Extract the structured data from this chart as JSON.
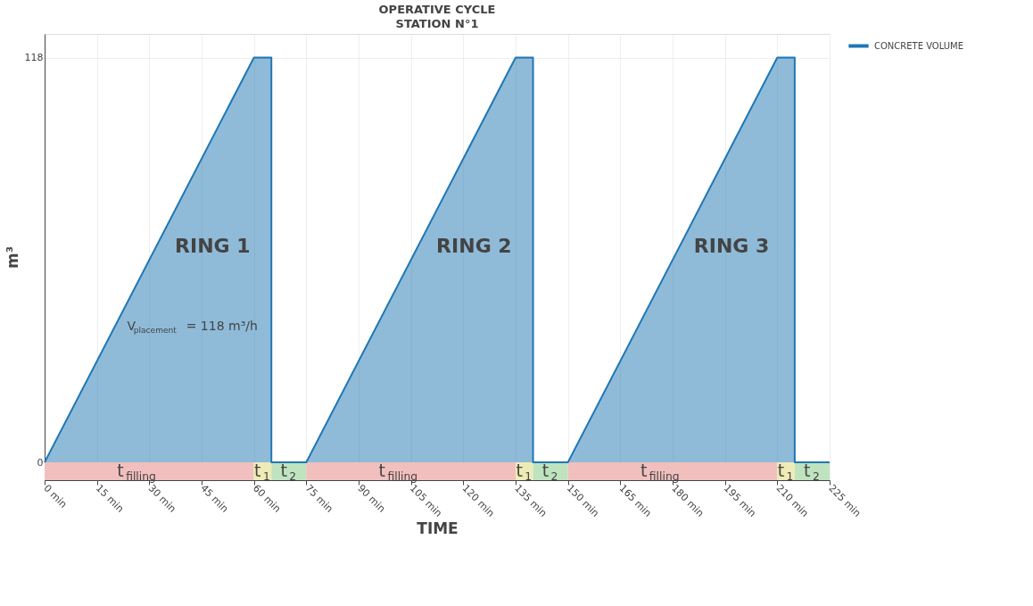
{
  "chart_data": {
    "type": "area",
    "title": "OPERATIVE CYCLE",
    "subtitle": "STATION N°1",
    "xlabel": "TIME",
    "ylabel": "m³",
    "x": [
      0,
      60,
      65,
      65,
      75,
      135,
      140,
      140,
      150,
      210,
      215,
      215,
      225
    ],
    "series": [
      {
        "name": "CONCRETE VOLUME",
        "color": "#1f77b4",
        "values": [
          0,
          118,
          118,
          0,
          0,
          118,
          118,
          0,
          0,
          118,
          118,
          0,
          0
        ]
      }
    ],
    "xlim": [
      0,
      225
    ],
    "xticks": [
      {
        "value": 0,
        "label": "0 min"
      },
      {
        "value": 15,
        "label": "15 min"
      },
      {
        "value": 30,
        "label": "30 min"
      },
      {
        "value": 45,
        "label": "45 min"
      },
      {
        "value": 60,
        "label": "60 min"
      },
      {
        "value": 75,
        "label": "75 min"
      },
      {
        "value": 90,
        "label": "90 min"
      },
      {
        "value": 105,
        "label": "105 min"
      },
      {
        "value": 120,
        "label": "120 min"
      },
      {
        "value": 135,
        "label": "135 min"
      },
      {
        "value": 150,
        "label": "150 min"
      },
      {
        "value": 165,
        "label": "165 min"
      },
      {
        "value": 180,
        "label": "180 min"
      },
      {
        "value": 195,
        "label": "195 min"
      },
      {
        "value": 210,
        "label": "210 min"
      },
      {
        "value": 225,
        "label": "225 min"
      }
    ],
    "ylim": [
      -5.2,
      124.9
    ],
    "yticks": [
      0,
      118
    ],
    "bands": [
      {
        "axis": "x",
        "from": 0,
        "to": 60,
        "label": "t$_{filling}$",
        "color": "#f2bfbf"
      },
      {
        "axis": "x",
        "from": 60,
        "to": 65,
        "label": "t$_{1}$",
        "color": "#eeebb6"
      },
      {
        "axis": "x",
        "from": 65,
        "to": 75,
        "label": "t$_{2}$",
        "color": "#bfe3bf"
      },
      {
        "axis": "x",
        "from": 75,
        "to": 135,
        "label": "t$_{filling}$",
        "color": "#f2bfbf"
      },
      {
        "axis": "x",
        "from": 135,
        "to": 140,
        "label": "t$_{1}$",
        "color": "#eeebb6"
      },
      {
        "axis": "x",
        "from": 140,
        "to": 150,
        "label": "t$_{2}$",
        "color": "#bfe3bf"
      },
      {
        "axis": "x",
        "from": 150,
        "to": 210,
        "label": "t$_{filling}$",
        "color": "#f2bfbf"
      },
      {
        "axis": "x",
        "from": 210,
        "to": 215,
        "label": "t$_{1}$",
        "color": "#eeebb6"
      },
      {
        "axis": "x",
        "from": 215,
        "to": 225,
        "label": "t$_{2}$",
        "color": "#bfe3bf"
      }
    ],
    "annotations": [
      "RING 1",
      "RING 2",
      "RING 3",
      "V$_{placement}$ = 118 m³/h"
    ],
    "grid": true,
    "legend": "top right"
  }
}
